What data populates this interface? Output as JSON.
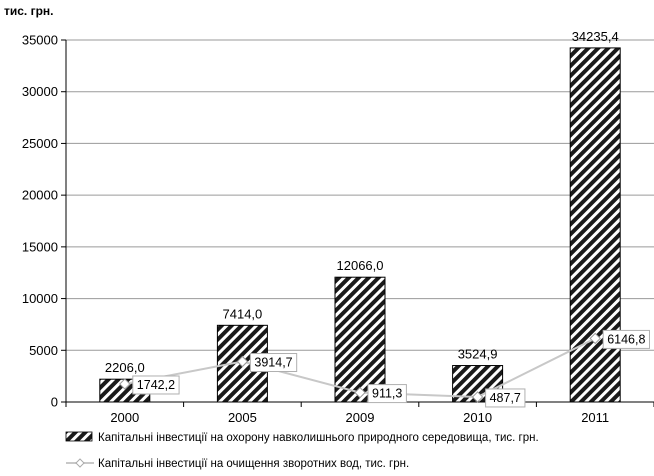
{
  "chart_data": {
    "type": "bar",
    "unit_label": "тис. грн.",
    "categories": [
      "2000",
      "2005",
      "2009",
      "2010",
      "2011"
    ],
    "ylim": [
      0,
      35000
    ],
    "yticks": [
      0,
      5000,
      10000,
      15000,
      20000,
      25000,
      30000,
      35000
    ],
    "ytick_labels": [
      "0",
      "5000",
      "10000",
      "15000",
      "20000",
      "25000",
      "30000",
      "35000"
    ],
    "grid": true,
    "legend_position": "bottom",
    "series": [
      {
        "name": "Капітальні інвестиції на охорону навколишнього природного середовища, тис. грн.",
        "type": "bar",
        "values": [
          2206.0,
          7414.0,
          12066.0,
          3524.9,
          34235.4
        ],
        "labels": [
          "2206,0",
          "7414,0",
          "12066,0",
          "3524,9",
          "34235,4"
        ]
      },
      {
        "name": "Капітальні інвестиції на очищення зворотних вод, тис. грн.",
        "type": "line",
        "values": [
          1742.2,
          3914.7,
          911.3,
          487.7,
          6146.8
        ],
        "labels": [
          "1742,2",
          "3914,7",
          "911,3",
          "487,7",
          "6146,8"
        ]
      }
    ]
  }
}
